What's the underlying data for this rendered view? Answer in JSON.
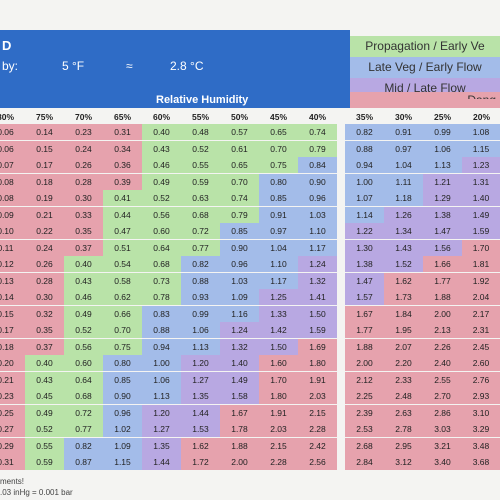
{
  "header": {
    "title_fragment": "D",
    "offset_label": "by:",
    "offset_f": "5 °F",
    "approx": "≈",
    "offset_c": "2.8 °C"
  },
  "footer": {
    "note1": "ments!",
    "note2": ".03 inHg = 0.001 bar"
  },
  "colors": {
    "header": "#2f6cc6",
    "propagation": "#b9e3a8",
    "late_veg": "#a3bce9",
    "mid_late_flower": "#b8a8e2",
    "danger": "#e6a2ad"
  },
  "chart_data": {
    "type": "table",
    "column_axis_label": "Relative Humidity",
    "columns": [
      "80%",
      "75%",
      "70%",
      "65%",
      "60%",
      "55%",
      "50%",
      "45%",
      "40%",
      "35%",
      "30%",
      "25%",
      "20%"
    ],
    "legend": [
      {
        "label": "Propagation / Early Ve",
        "zone": "propagation"
      },
      {
        "label": "Late Veg / Early Flow",
        "zone": "late_veg"
      },
      {
        "label": "Mid / Late Flow",
        "zone": "mid_late_flower"
      },
      {
        "label": "Dang",
        "zone": "danger"
      }
    ],
    "values": [
      [
        "0.06",
        "0.14",
        "0.23",
        "0.31",
        "0.40",
        "0.48",
        "0.57",
        "0.65",
        "0.74",
        "0.82",
        "0.91",
        "0.99",
        "1.08"
      ],
      [
        "0.06",
        "0.15",
        "0.24",
        "0.34",
        "0.43",
        "0.52",
        "0.61",
        "0.70",
        "0.79",
        "0.88",
        "0.97",
        "1.06",
        "1.15"
      ],
      [
        "0.07",
        "0.17",
        "0.26",
        "0.36",
        "0.46",
        "0.55",
        "0.65",
        "0.75",
        "0.84",
        "0.94",
        "1.04",
        "1.13",
        "1.23"
      ],
      [
        "0.08",
        "0.18",
        "0.28",
        "0.39",
        "0.49",
        "0.59",
        "0.70",
        "0.80",
        "0.90",
        "1.00",
        "1.11",
        "1.21",
        "1.31"
      ],
      [
        "0.08",
        "0.19",
        "0.30",
        "0.41",
        "0.52",
        "0.63",
        "0.74",
        "0.85",
        "0.96",
        "1.07",
        "1.18",
        "1.29",
        "1.40"
      ],
      [
        "0.09",
        "0.21",
        "0.33",
        "0.44",
        "0.56",
        "0.68",
        "0.79",
        "0.91",
        "1.03",
        "1.14",
        "1.26",
        "1.38",
        "1.49"
      ],
      [
        "0.10",
        "0.22",
        "0.35",
        "0.47",
        "0.60",
        "0.72",
        "0.85",
        "0.97",
        "1.10",
        "1.22",
        "1.34",
        "1.47",
        "1.59"
      ],
      [
        "0.11",
        "0.24",
        "0.37",
        "0.51",
        "0.64",
        "0.77",
        "0.90",
        "1.04",
        "1.17",
        "1.30",
        "1.43",
        "1.56",
        "1.70"
      ],
      [
        "0.12",
        "0.26",
        "0.40",
        "0.54",
        "0.68",
        "0.82",
        "0.96",
        "1.10",
        "1.24",
        "1.38",
        "1.52",
        "1.66",
        "1.81"
      ],
      [
        "0.13",
        "0.28",
        "0.43",
        "0.58",
        "0.73",
        "0.88",
        "1.03",
        "1.17",
        "1.32",
        "1.47",
        "1.62",
        "1.77",
        "1.92"
      ],
      [
        "0.14",
        "0.30",
        "0.46",
        "0.62",
        "0.78",
        "0.93",
        "1.09",
        "1.25",
        "1.41",
        "1.57",
        "1.73",
        "1.88",
        "2.04"
      ],
      [
        "0.15",
        "0.32",
        "0.49",
        "0.66",
        "0.83",
        "0.99",
        "1.16",
        "1.33",
        "1.50",
        "1.67",
        "1.84",
        "2.00",
        "2.17"
      ],
      [
        "0.17",
        "0.35",
        "0.52",
        "0.70",
        "0.88",
        "1.06",
        "1.24",
        "1.42",
        "1.59",
        "1.77",
        "1.95",
        "2.13",
        "2.31"
      ],
      [
        "0.18",
        "0.37",
        "0.56",
        "0.75",
        "0.94",
        "1.13",
        "1.32",
        "1.50",
        "1.69",
        "1.88",
        "2.07",
        "2.26",
        "2.45"
      ],
      [
        "0.20",
        "0.40",
        "0.60",
        "0.80",
        "1.00",
        "1.20",
        "1.40",
        "1.60",
        "1.80",
        "2.00",
        "2.20",
        "2.40",
        "2.60"
      ],
      [
        "0.21",
        "0.43",
        "0.64",
        "0.85",
        "1.06",
        "1.27",
        "1.49",
        "1.70",
        "1.91",
        "2.12",
        "2.33",
        "2.55",
        "2.76"
      ],
      [
        "0.23",
        "0.45",
        "0.68",
        "0.90",
        "1.13",
        "1.35",
        "1.58",
        "1.80",
        "2.03",
        "2.25",
        "2.48",
        "2.70",
        "2.93"
      ],
      [
        "0.25",
        "0.49",
        "0.72",
        "0.96",
        "1.20",
        "1.44",
        "1.67",
        "1.91",
        "2.15",
        "2.39",
        "2.63",
        "2.86",
        "3.10"
      ],
      [
        "0.27",
        "0.52",
        "0.77",
        "1.02",
        "1.27",
        "1.53",
        "1.78",
        "2.03",
        "2.28",
        "2.53",
        "2.78",
        "3.03",
        "3.29"
      ],
      [
        "0.29",
        "0.55",
        "0.82",
        "1.09",
        "1.35",
        "1.62",
        "1.88",
        "2.15",
        "2.42",
        "2.68",
        "2.95",
        "3.21",
        "3.48"
      ],
      [
        "0.31",
        "0.59",
        "0.87",
        "1.15",
        "1.44",
        "1.72",
        "2.00",
        "2.28",
        "2.56",
        "2.84",
        "3.12",
        "3.40",
        "3.68"
      ]
    ]
  }
}
